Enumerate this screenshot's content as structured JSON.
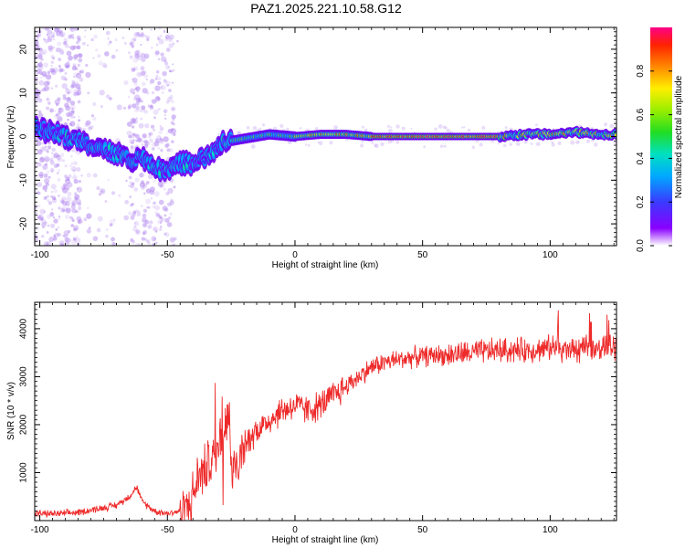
{
  "title": "PAZ1.2025.221.10.58.G12",
  "colors": {
    "snr_line": "#ee2a2a",
    "ridge": "#5500dd",
    "scatter": "#c9a9f2"
  },
  "chart_data": [
    {
      "type": "heatmap",
      "xlabel": "Height of straight line (km)",
      "ylabel": "Frequency (Hz)",
      "xlim": [
        -102,
        126
      ],
      "ylim": [
        -25,
        25
      ],
      "xticks": [
        -100,
        -50,
        0,
        50,
        100
      ],
      "yticks": [
        -20,
        -10,
        0,
        10,
        20
      ],
      "colorbar": {
        "label": "Normalized spectral amplitude",
        "range": [
          0,
          1
        ],
        "ticks": [
          "0.0",
          "0.2",
          "0.4",
          "0.6",
          "0.8"
        ]
      },
      "ridge": {
        "x": [
          -102,
          -95,
          -90,
          -85,
          -80,
          -75,
          -70,
          -65,
          -60,
          -55,
          -50,
          -45,
          -40,
          -35,
          -30,
          -27,
          -25,
          -20,
          -10,
          0,
          10,
          20,
          30,
          40,
          50,
          60,
          70,
          80,
          90,
          100,
          110,
          120,
          126
        ],
        "y": [
          2,
          1,
          0,
          -1,
          -2,
          -3,
          -4,
          -5,
          -5,
          -7,
          -8,
          -6,
          -6,
          -5,
          -2,
          -1,
          -1,
          -0.5,
          0.5,
          0,
          0.5,
          0.5,
          0,
          0,
          0,
          0,
          0,
          0,
          0.5,
          0.5,
          1,
          0.5,
          0.5
        ]
      }
    },
    {
      "type": "line",
      "xlabel": "Height of straight line (km)",
      "ylabel": "SNR (10 * v/v)",
      "xlim": [
        -102,
        126
      ],
      "ylim": [
        0,
        4550
      ],
      "xticks": [
        -100,
        -50,
        0,
        50,
        100
      ],
      "yticks": [
        1000,
        2000,
        3000,
        4000
      ],
      "series": [
        {
          "x": [
            -102,
            -95,
            -90,
            -85,
            -80,
            -75,
            -70,
            -65,
            -62,
            -60,
            -55,
            -50,
            -45,
            -42,
            -40,
            -38,
            -35,
            -32,
            -30,
            -28,
            -26,
            -25,
            -24,
            -22,
            -20,
            -18,
            -15,
            -12,
            -10,
            -5,
            0,
            5,
            10,
            15,
            20,
            25,
            30,
            35,
            40,
            45,
            50,
            55,
            60,
            70,
            80,
            90,
            100,
            110,
            120,
            126
          ],
          "y": [
            150,
            140,
            150,
            170,
            220,
            270,
            320,
            500,
            700,
            400,
            200,
            150,
            200,
            300,
            500,
            900,
            1100,
            1300,
            1600,
            1900,
            2300,
            1200,
            900,
            1200,
            1500,
            1700,
            1900,
            2000,
            2100,
            2300,
            2400,
            2300,
            2400,
            2600,
            2800,
            3000,
            3200,
            3300,
            3350,
            3400,
            3420,
            3450,
            3450,
            3500,
            3550,
            3550,
            3600,
            3550,
            3600,
            3650
          ]
        }
      ]
    }
  ]
}
